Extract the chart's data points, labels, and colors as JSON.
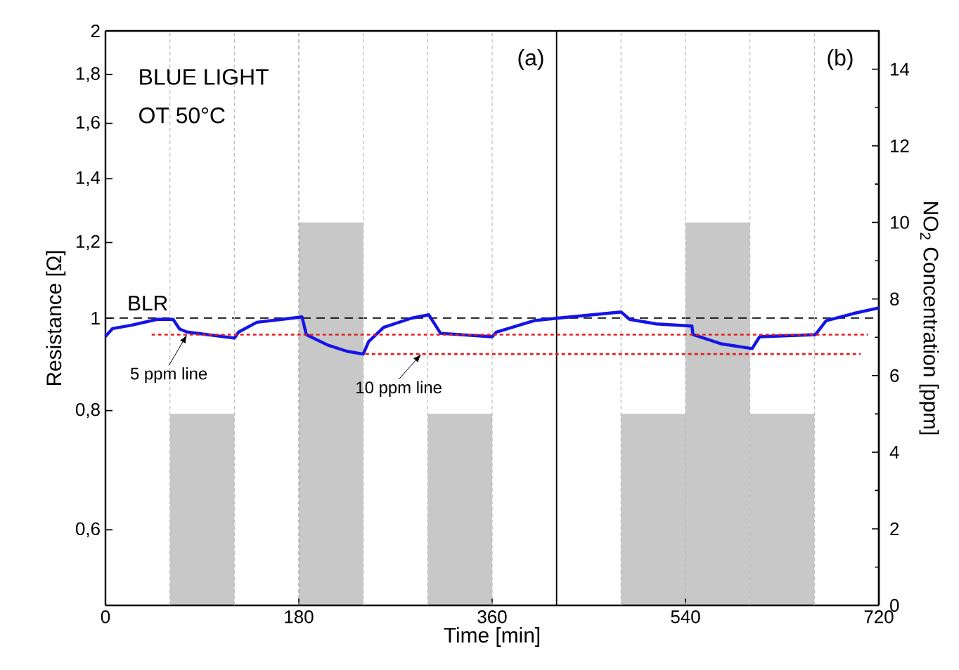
{
  "chart_data": {
    "type": "line",
    "xlabel": "Time [min]",
    "ylabel": "Resistance [Ω]",
    "y2label": "NO$_{2}$ Concentration [ppm]",
    "annotations": [
      "BLUE LIGHT",
      "OT 50°C",
      "(a)",
      "(b)",
      {
        "text": "5 ppm line",
        "x": 76,
        "y": 0.961
      },
      {
        "text": "10 ppm line",
        "x": 294,
        "y": 0.917
      }
    ],
    "xlim": [
      0,
      720
    ],
    "xticks": [
      0,
      180,
      360,
      540,
      720
    ],
    "log": "y",
    "ylim": [
      0.5,
      2
    ],
    "yticks": [
      {
        "value": 0.6,
        "label": "0,6"
      },
      {
        "value": 0.8,
        "label": "0,8"
      },
      {
        "value": 1,
        "label": "1"
      },
      {
        "value": 1.2,
        "label": "1,2"
      },
      {
        "value": 1.4,
        "label": "1,4"
      },
      {
        "value": 1.6,
        "label": "1,6"
      },
      {
        "value": 1.8,
        "label": "1,8"
      },
      {
        "value": 2,
        "label": "2"
      }
    ],
    "y2lim": [
      0,
      15
    ],
    "y2ticks": [
      0,
      2,
      4,
      6,
      8,
      10,
      12,
      14
    ],
    "marker": "none",
    "series": [
      {
        "type": "bar",
        "axis": "y2",
        "color": "#c8c8c8",
        "x": [
          90,
          210,
          330,
          510,
          570,
          630
        ],
        "values": [
          5,
          10,
          5,
          5,
          10,
          5
        ]
      },
      {
        "color": "#1414e6",
        "x": [
          0,
          6.5,
          24,
          48,
          63,
          69,
          76,
          120,
          124,
          141,
          164,
          183,
          187,
          207,
          225,
          240,
          245,
          259,
          285,
          301,
          312,
          360,
          364,
          399,
          421,
          480,
          488,
          513,
          546,
          547,
          573,
          602,
          609,
          661,
          671,
          696,
          720
        ],
        "values": [
          0.957,
          0.975,
          0.983,
          0.997,
          0.997,
          0.974,
          0.967,
          0.953,
          0.967,
          0.99,
          0.997,
          1.003,
          0.961,
          0.937,
          0.923,
          0.917,
          0.945,
          0.978,
          1.0,
          1.008,
          0.964,
          0.956,
          0.967,
          0.994,
          1.0,
          1.015,
          0.997,
          0.986,
          0.981,
          0.961,
          0.94,
          0.929,
          0.956,
          0.961,
          0.994,
          1.011,
          1.025
        ]
      },
      {
        "color": "#e02020",
        "line_style": "dotted",
        "x": [
          43,
          710
        ],
        "values": [
          0.961,
          0.961
        ]
      },
      {
        "color": "#e02020",
        "line_style": "dotted",
        "x": [
          242,
          703
        ],
        "values": [
          0.917,
          0.917
        ]
      }
    ],
    "ref_lines": [
      {
        "axis": "y",
        "value": 1,
        "label": "BLR",
        "color": "#000000",
        "line_style": "dashed"
      },
      {
        "axis": "x",
        "value": 420,
        "color": "#000000",
        "line_style": "solid"
      },
      {
        "axis": "x",
        "value": 60,
        "color": "#bbbbbb",
        "line_style": "dotted"
      },
      {
        "axis": "x",
        "value": 120,
        "color": "#bbbbbb",
        "line_style": "dotted"
      },
      {
        "axis": "x",
        "value": 180,
        "color": "#999999",
        "line_style": "dotted"
      },
      {
        "axis": "x",
        "value": 240,
        "color": "#bbbbbb",
        "line_style": "dotted"
      },
      {
        "axis": "x",
        "value": 300,
        "color": "#bbbbbb",
        "line_style": "dotted"
      },
      {
        "axis": "x",
        "value": 360,
        "color": "#bbbbbb",
        "line_style": "dotted"
      },
      {
        "axis": "x",
        "value": 480,
        "color": "#bbbbbb",
        "line_style": "dotted"
      },
      {
        "axis": "x",
        "value": 540,
        "color": "#bbbbbb",
        "line_style": "dotted"
      },
      {
        "axis": "x",
        "value": 600,
        "color": "#bbbbbb",
        "line_style": "dotted"
      },
      {
        "axis": "x",
        "value": 660,
        "color": "#bbbbbb",
        "line_style": "dotted"
      }
    ]
  }
}
